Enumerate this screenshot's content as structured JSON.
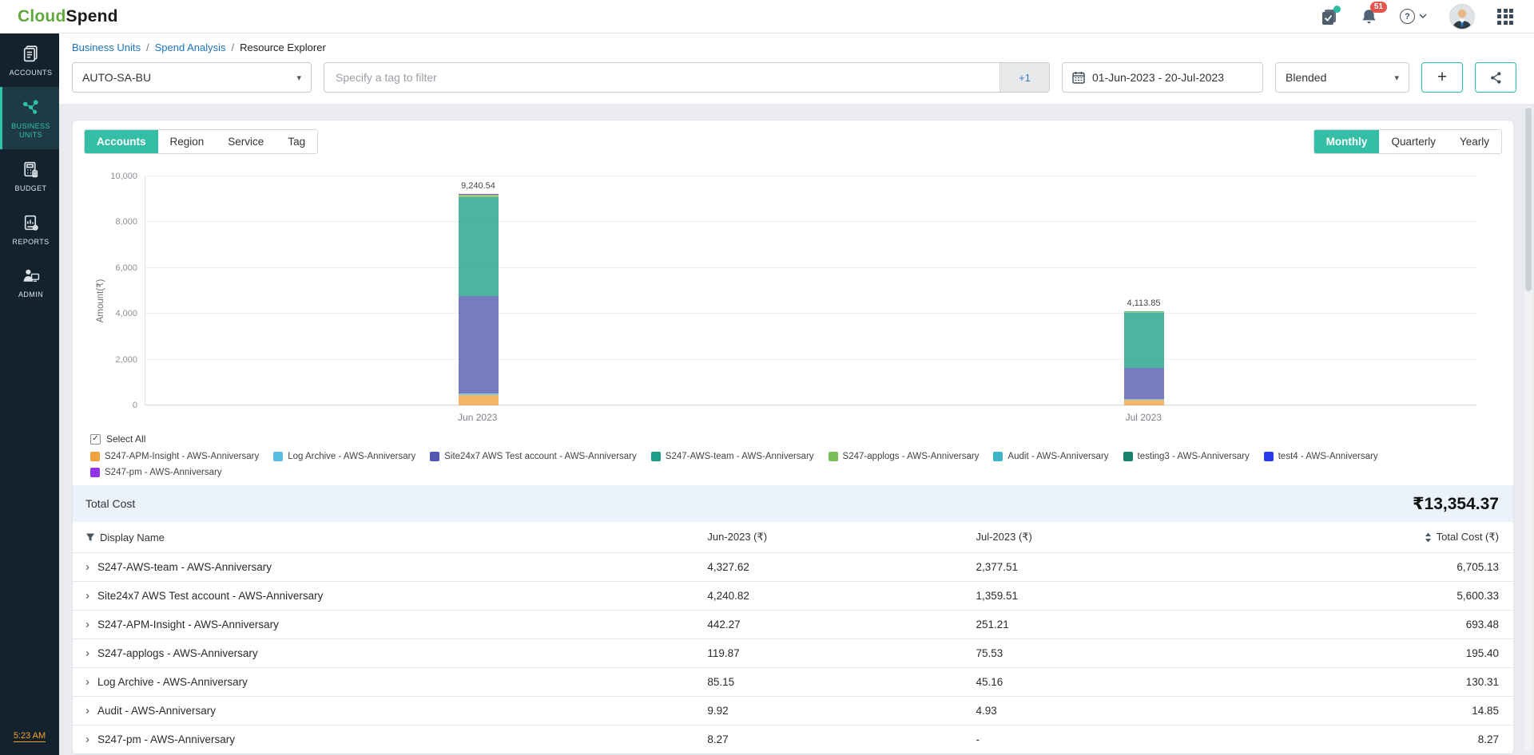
{
  "header": {
    "brand_prefix": "Cloud",
    "brand_suffix": "Spend",
    "notification_count": "51",
    "help_glyph": "?"
  },
  "sidebar": {
    "items": [
      {
        "label": "ACCOUNTS",
        "active": false
      },
      {
        "label": "BUSINESS UNITS",
        "active": true
      },
      {
        "label": "BUDGET",
        "active": false
      },
      {
        "label": "REPORTS",
        "active": false
      },
      {
        "label": "ADMIN",
        "active": false
      }
    ],
    "time": "5:23 AM"
  },
  "breadcrumb": [
    "Business Units",
    "Spend Analysis",
    "Resource Explorer"
  ],
  "filters": {
    "business_unit": "AUTO-SA-BU",
    "tag_placeholder": "Specify a tag to filter",
    "tag_more": "+1",
    "date_range": "01-Jun-2023 - 20-Jul-2023",
    "cost_type": "Blended",
    "add_label": "+"
  },
  "view_tabs": {
    "active": 0,
    "items": [
      "Accounts",
      "Region",
      "Service",
      "Tag"
    ]
  },
  "period_tabs": {
    "active": 0,
    "items": [
      "Monthly",
      "Quarterly",
      "Yearly"
    ]
  },
  "chart_data": {
    "type": "bar",
    "stacked": true,
    "title": "",
    "xlabel": "",
    "ylabel": "Amount(₹)",
    "ylim": [
      0,
      10000
    ],
    "yticks": [
      "0",
      "2,000",
      "4,000",
      "6,000",
      "8,000",
      "10,000"
    ],
    "grid": true,
    "legend_position": "bottom",
    "legend_select_all": "Select All",
    "categories": [
      "Jun 2023",
      "Jul 2023"
    ],
    "bar_total_labels": [
      "9,240.54",
      "4,113.85"
    ],
    "series": [
      {
        "name": "S247-APM-Insight - AWS-Anniversary",
        "color": "#F0A23F",
        "values": [
          442.27,
          251.21
        ]
      },
      {
        "name": "Log Archive - AWS-Anniversary",
        "color": "#58C0DE",
        "values": [
          85.15,
          45.16
        ]
      },
      {
        "name": "Site24x7 AWS Test account - AWS-Anniversary",
        "color": "#5157AE",
        "values": [
          4240.82,
          1359.51
        ]
      },
      {
        "name": "S247-AWS-team - AWS-Anniversary",
        "color": "#1D9E88",
        "values": [
          4327.62,
          2377.51
        ]
      },
      {
        "name": "S247-applogs - AWS-Anniversary",
        "color": "#7CBE57",
        "values": [
          119.87,
          75.53
        ]
      },
      {
        "name": "Audit - AWS-Anniversary",
        "color": "#3FB6C8",
        "values": [
          9.92,
          4.93
        ]
      },
      {
        "name": "testing3 - AWS-Anniversary",
        "color": "#17826B",
        "values": [
          0,
          0
        ]
      },
      {
        "name": "test4 - AWS-Anniversary",
        "color": "#2A3BE8",
        "values": [
          0,
          0
        ]
      },
      {
        "name": "S247-pm - AWS-Anniversary",
        "color": "#9333EA",
        "values": [
          8.27,
          0
        ]
      }
    ]
  },
  "summary": {
    "label": "Total Cost",
    "value": "₹13,354.37"
  },
  "table": {
    "columns": [
      "Display Name",
      "Jun-2023 (₹)",
      "Jul-2023 (₹)",
      "Total Cost (₹)"
    ],
    "rows": [
      [
        "S247-AWS-team - AWS-Anniversary",
        "4,327.62",
        "2,377.51",
        "6,705.13"
      ],
      [
        "Site24x7 AWS Test account - AWS-Anniversary",
        "4,240.82",
        "1,359.51",
        "5,600.33"
      ],
      [
        "S247-APM-Insight - AWS-Anniversary",
        "442.27",
        "251.21",
        "693.48"
      ],
      [
        "S247-applogs - AWS-Anniversary",
        "119.87",
        "75.53",
        "195.40"
      ],
      [
        "Log Archive - AWS-Anniversary",
        "85.15",
        "45.16",
        "130.31"
      ],
      [
        "Audit - AWS-Anniversary",
        "9.92",
        "4.93",
        "14.85"
      ],
      [
        "S247-pm - AWS-Anniversary",
        "8.27",
        "-",
        "8.27"
      ]
    ]
  },
  "colors": {
    "accent": "#35BEA6",
    "sidebar_bg": "#14222D",
    "link_blue": "#1C73BD",
    "badge_red": "#E3544C"
  }
}
